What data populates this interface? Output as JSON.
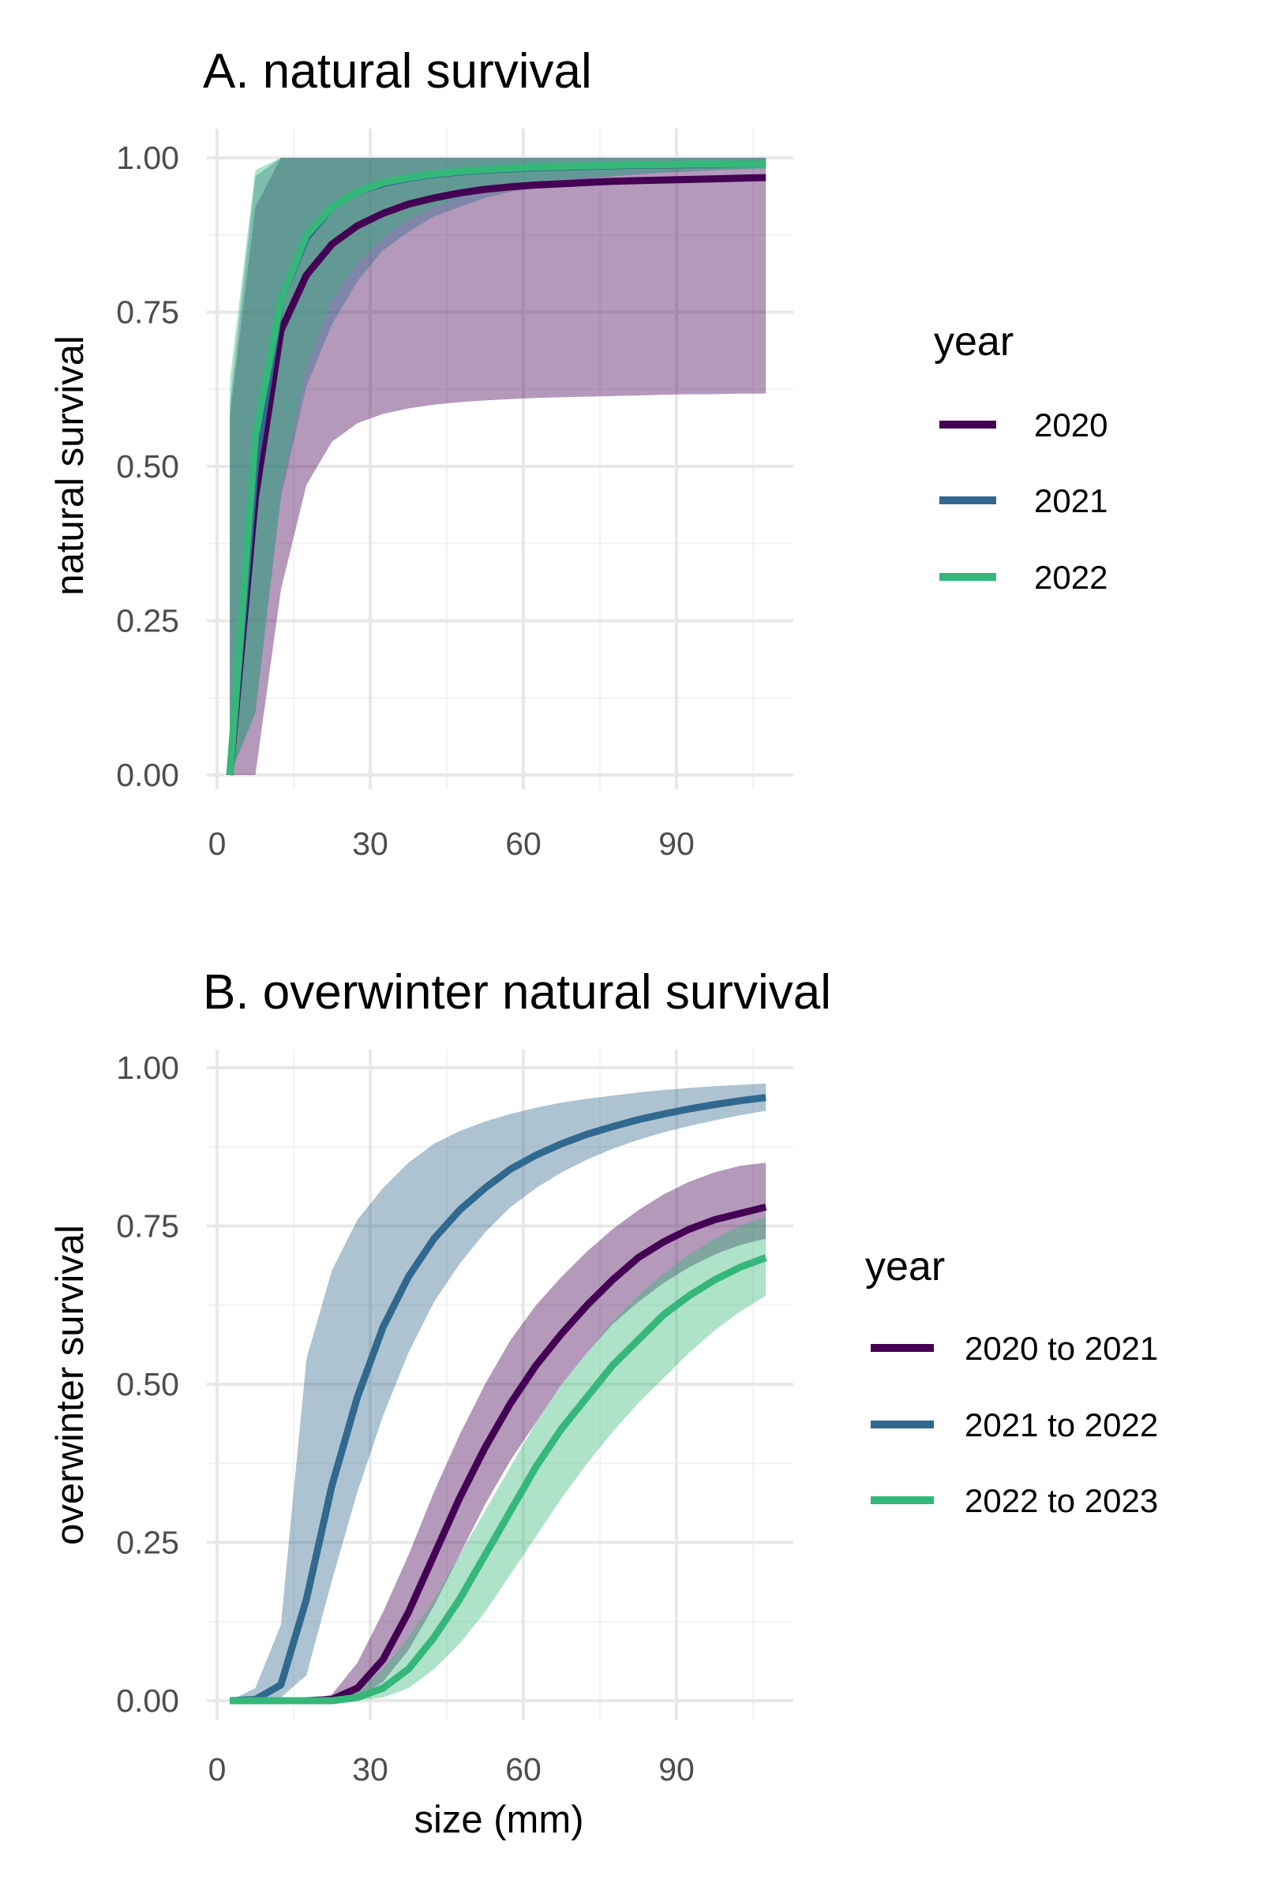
{
  "chart_data": [
    {
      "type": "line",
      "title": "A. natural survival",
      "xlabel": "",
      "ylabel": "natural survival",
      "xlim": [
        0,
        108
      ],
      "ylim": [
        0,
        1
      ],
      "xticks": [
        "0",
        "30",
        "60",
        "90"
      ],
      "yticks": [
        "0.00",
        "0.25",
        "0.50",
        "0.75",
        "1.00"
      ],
      "grid": true,
      "legend": {
        "title": "year",
        "position": "right"
      },
      "x": [
        2.5,
        7.5,
        12.5,
        17.5,
        22.5,
        27.5,
        32.5,
        37.5,
        42.5,
        47.5,
        52.5,
        57.5,
        62.5,
        67.5,
        72.5,
        77.5,
        82.5,
        87.5,
        92.5,
        97.5,
        102.5,
        107.5
      ],
      "series": [
        {
          "name": "2020",
          "color": "#440154",
          "values": [
            0.0,
            0.45,
            0.72,
            0.81,
            0.86,
            0.89,
            0.91,
            0.925,
            0.935,
            0.943,
            0.949,
            0.953,
            0.956,
            0.958,
            0.96,
            0.962,
            0.963,
            0.964,
            0.965,
            0.966,
            0.967,
            0.968
          ],
          "lower": [
            0.0,
            0.0,
            0.3,
            0.47,
            0.54,
            0.57,
            0.585,
            0.594,
            0.6,
            0.604,
            0.607,
            0.609,
            0.611,
            0.612,
            0.613,
            0.614,
            0.615,
            0.616,
            0.617,
            0.617,
            0.618,
            0.618
          ],
          "upper": [
            0.58,
            0.92,
            1.0,
            1.0,
            1.0,
            1.0,
            1.0,
            1.0,
            1.0,
            1.0,
            1.0,
            1.0,
            1.0,
            1.0,
            1.0,
            1.0,
            1.0,
            1.0,
            1.0,
            1.0,
            1.0,
            1.0
          ]
        },
        {
          "name": "2021",
          "color": "#31688e",
          "values": [
            0.0,
            0.5,
            0.77,
            0.87,
            0.92,
            0.945,
            0.958,
            0.967,
            0.973,
            0.977,
            0.98,
            0.982,
            0.984,
            0.985,
            0.986,
            0.987,
            0.988,
            0.988,
            0.989,
            0.989,
            0.99,
            0.99
          ],
          "lower": [
            0.0,
            0.1,
            0.45,
            0.63,
            0.73,
            0.8,
            0.85,
            0.88,
            0.905,
            0.92,
            0.935,
            0.945,
            0.953,
            0.96,
            0.965,
            0.97,
            0.973,
            0.976,
            0.978,
            0.98,
            0.982,
            0.983
          ],
          "upper": [
            0.6,
            0.97,
            1.0,
            1.0,
            1.0,
            1.0,
            1.0,
            1.0,
            1.0,
            1.0,
            1.0,
            1.0,
            1.0,
            1.0,
            1.0,
            1.0,
            1.0,
            1.0,
            1.0,
            1.0,
            1.0,
            1.0
          ]
        },
        {
          "name": "2022",
          "color": "#35b779",
          "values": [
            0.0,
            0.55,
            0.77,
            0.875,
            0.92,
            0.945,
            0.96,
            0.968,
            0.974,
            0.978,
            0.981,
            0.983,
            0.985,
            0.986,
            0.987,
            0.988,
            0.989,
            0.989,
            0.99,
            0.99,
            0.99,
            0.99
          ],
          "lower": [
            0.0,
            0.1,
            0.46,
            0.66,
            0.77,
            0.83,
            0.87,
            0.9,
            0.92,
            0.935,
            0.945,
            0.953,
            0.96,
            0.965,
            0.969,
            0.972,
            0.975,
            0.977,
            0.979,
            0.98,
            0.981,
            0.982
          ],
          "upper": [
            0.64,
            0.98,
            1.0,
            1.0,
            1.0,
            1.0,
            1.0,
            1.0,
            1.0,
            1.0,
            1.0,
            1.0,
            1.0,
            1.0,
            1.0,
            1.0,
            1.0,
            1.0,
            1.0,
            1.0,
            1.0,
            1.0
          ]
        }
      ]
    },
    {
      "type": "line",
      "title": "B. overwinter natural survival",
      "xlabel": "size (mm)",
      "ylabel": "overwinter survival",
      "xlim": [
        0,
        108
      ],
      "ylim": [
        0,
        1
      ],
      "xticks": [
        "0",
        "30",
        "60",
        "90"
      ],
      "yticks": [
        "0.00",
        "0.25",
        "0.50",
        "0.75",
        "1.00"
      ],
      "grid": true,
      "legend": {
        "title": "year",
        "position": "right"
      },
      "x": [
        2.5,
        7.5,
        12.5,
        17.5,
        22.5,
        27.5,
        32.5,
        37.5,
        42.5,
        47.5,
        52.5,
        57.5,
        62.5,
        67.5,
        72.5,
        77.5,
        82.5,
        87.5,
        92.5,
        97.5,
        102.5,
        107.5
      ],
      "series": [
        {
          "name": "2020 to 2021",
          "color": "#440154",
          "values": [
            0.0,
            0.0,
            0.0,
            0.0,
            0.002,
            0.02,
            0.065,
            0.14,
            0.23,
            0.32,
            0.4,
            0.47,
            0.53,
            0.58,
            0.625,
            0.665,
            0.7,
            0.725,
            0.745,
            0.76,
            0.77,
            0.78
          ],
          "lower": [
            0.0,
            0.0,
            0.0,
            0.0,
            0.0,
            0.005,
            0.03,
            0.08,
            0.15,
            0.23,
            0.31,
            0.38,
            0.44,
            0.5,
            0.55,
            0.595,
            0.63,
            0.66,
            0.685,
            0.705,
            0.72,
            0.73
          ],
          "upper": [
            0.0,
            0.0,
            0.0,
            0.0,
            0.01,
            0.06,
            0.14,
            0.23,
            0.33,
            0.42,
            0.5,
            0.57,
            0.625,
            0.67,
            0.71,
            0.745,
            0.775,
            0.8,
            0.82,
            0.835,
            0.845,
            0.85
          ]
        },
        {
          "name": "2021 to 2022",
          "color": "#31688e",
          "values": [
            0.0,
            0.002,
            0.025,
            0.16,
            0.34,
            0.48,
            0.59,
            0.67,
            0.73,
            0.775,
            0.81,
            0.84,
            0.862,
            0.88,
            0.895,
            0.907,
            0.918,
            0.927,
            0.935,
            0.942,
            0.948,
            0.953
          ],
          "lower": [
            0.0,
            0.0,
            0.005,
            0.04,
            0.19,
            0.33,
            0.45,
            0.55,
            0.63,
            0.69,
            0.74,
            0.78,
            0.81,
            0.835,
            0.855,
            0.872,
            0.886,
            0.898,
            0.908,
            0.917,
            0.925,
            0.932
          ],
          "upper": [
            0.0,
            0.02,
            0.12,
            0.54,
            0.68,
            0.76,
            0.81,
            0.85,
            0.88,
            0.9,
            0.915,
            0.927,
            0.937,
            0.945,
            0.951,
            0.956,
            0.961,
            0.965,
            0.968,
            0.971,
            0.973,
            0.975
          ]
        },
        {
          "name": "2022 to 2023",
          "color": "#35b779",
          "values": [
            0.0,
            0.0,
            0.0,
            0.0,
            0.0,
            0.005,
            0.02,
            0.05,
            0.1,
            0.16,
            0.23,
            0.3,
            0.37,
            0.43,
            0.48,
            0.53,
            0.57,
            0.61,
            0.64,
            0.665,
            0.685,
            0.7
          ],
          "lower": [
            0.0,
            0.0,
            0.0,
            0.0,
            0.0,
            0.0,
            0.005,
            0.02,
            0.05,
            0.09,
            0.14,
            0.2,
            0.26,
            0.32,
            0.375,
            0.425,
            0.47,
            0.51,
            0.55,
            0.585,
            0.615,
            0.64
          ],
          "upper": [
            0.0,
            0.0,
            0.0,
            0.0,
            0.0,
            0.015,
            0.05,
            0.1,
            0.16,
            0.23,
            0.3,
            0.37,
            0.44,
            0.5,
            0.55,
            0.6,
            0.64,
            0.675,
            0.705,
            0.73,
            0.75,
            0.765
          ]
        }
      ]
    }
  ]
}
